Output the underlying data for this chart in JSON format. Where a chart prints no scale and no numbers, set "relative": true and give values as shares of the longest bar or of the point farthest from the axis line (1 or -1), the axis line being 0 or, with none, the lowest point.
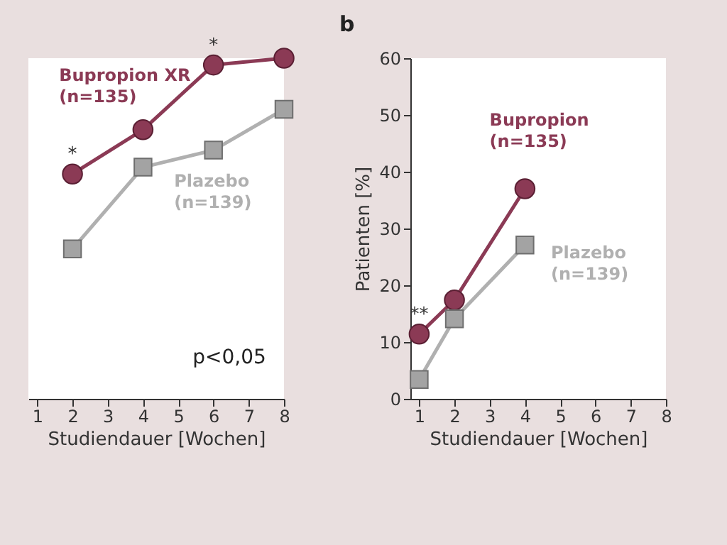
{
  "chart_data": [
    {
      "type": "line",
      "relative": true,
      "xlabel": "Studiendauer [Wochen]",
      "x": [
        2,
        4,
        6,
        8
      ],
      "xlim": [
        0.75,
        8
      ],
      "xticks": [
        1,
        2,
        3,
        4,
        5,
        6,
        7,
        8
      ],
      "grid": false,
      "series": [
        {
          "name": "Bupropion XR (n=135)",
          "color": "#8b3a55",
          "marker": "circle",
          "values": [
            0.66,
            0.79,
            0.98,
            1
          ]
        },
        {
          "name": "Plazebo (n=139)",
          "color": "#b0b0b0",
          "marker": "square",
          "values": [
            0.44,
            0.68,
            0.73,
            0.85
          ]
        }
      ],
      "annotations": [
        {
          "text": "*",
          "x": 2,
          "y": 0.66
        },
        {
          "text": "*",
          "x": 6,
          "y": 0.98
        },
        "p<0,05"
      ]
    },
    {
      "type": "line",
      "title": "b",
      "xlabel": "Studiendauer [Wochen]",
      "ylabel": "Patienten [%]",
      "x": [
        1,
        2,
        4
      ],
      "xlim": [
        0.75,
        8
      ],
      "xticks": [
        1,
        2,
        3,
        4,
        5,
        6,
        7,
        8
      ],
      "ylim": [
        0,
        60
      ],
      "yticks": [
        0,
        10,
        20,
        30,
        40,
        50,
        60
      ],
      "grid": false,
      "series": [
        {
          "name": "Bupropion (n=135)",
          "color": "#8b3a55",
          "marker": "circle",
          "values": [
            11.4,
            17.4,
            37
          ]
        },
        {
          "name": "Plazebo (n=139)",
          "color": "#b0b0b0",
          "marker": "square",
          "values": [
            3.4,
            14.1,
            27.1
          ]
        }
      ],
      "annotations": [
        {
          "text": "**",
          "x": 1,
          "y": 11.4
        }
      ]
    }
  ]
}
